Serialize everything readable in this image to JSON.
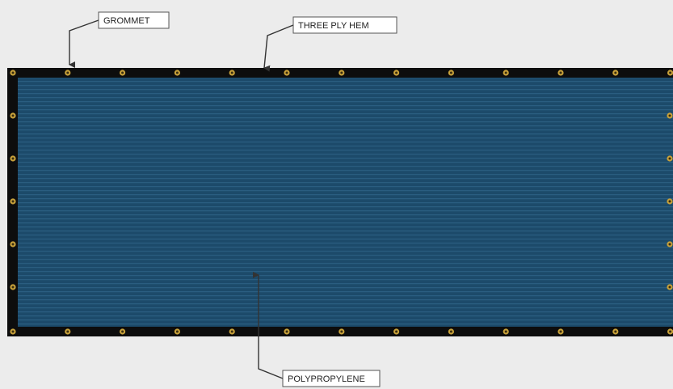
{
  "labels": {
    "grommet": "GROMMET",
    "hem": "THREE PLY HEM",
    "material": "POLYPROPYLENE"
  },
  "colors": {
    "background": "#ececec",
    "hem": "#0d0d0d",
    "mesh": "#1c4a6a",
    "mesh_stripe": "#2a5d80",
    "grommet_ring": "#c9a23a",
    "grommet_hole": "#3a2e10",
    "label_border": "#555555",
    "arrow": "#333333"
  },
  "icons": {
    "grommet": "grommet-icon",
    "arrow": "arrow-icon"
  }
}
